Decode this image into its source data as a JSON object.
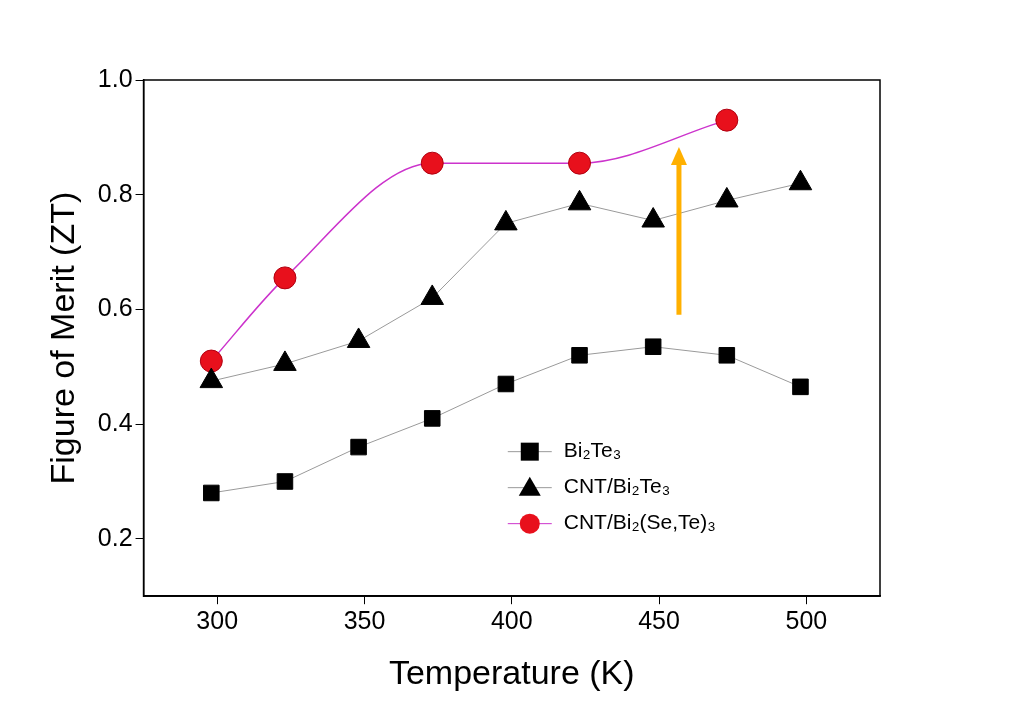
{
  "chart_data": {
    "type": "line",
    "x_label": "Temperature (K)",
    "y_label": "Figure of Merit (ZT)",
    "xlim": [
      275,
      525
    ],
    "xticks": [
      300,
      350,
      400,
      450,
      500
    ],
    "ylim": [
      0.1,
      1.0
    ],
    "yticks": [
      0.2,
      0.4,
      0.6,
      0.8,
      {
        "value": 1.0,
        "label": "1.0"
      }
    ],
    "grid": false,
    "legend": "lower right",
    "series": [
      {
        "name": "Bi₂Te₃",
        "color": "#000000",
        "marker": "square",
        "line_style": "solid",
        "x": [
          298,
          323,
          348,
          373,
          398,
          423,
          448,
          473,
          498
        ],
        "values": [
          0.28,
          0.3,
          0.36,
          0.41,
          0.47,
          0.52,
          0.535,
          0.52,
          0.465
        ]
      },
      {
        "name": "CNT/Bi₂Te₃",
        "color": "#000000",
        "marker": "triangle",
        "line_style": "solid",
        "x": [
          298,
          323,
          348,
          373,
          398,
          423,
          448,
          473,
          498
        ],
        "values": [
          0.475,
          0.505,
          0.545,
          0.62,
          0.75,
          0.785,
          0.755,
          0.79,
          0.82
        ]
      },
      {
        "name": "CNT/Bi₂(Se,Te)₃",
        "color": "#e8101c",
        "marker": "circle",
        "line_style": "smooth",
        "x": [
          298,
          323,
          373,
          423,
          473
        ],
        "values": [
          0.51,
          0.655,
          0.855,
          0.855,
          0.93
        ]
      }
    ]
  }
}
